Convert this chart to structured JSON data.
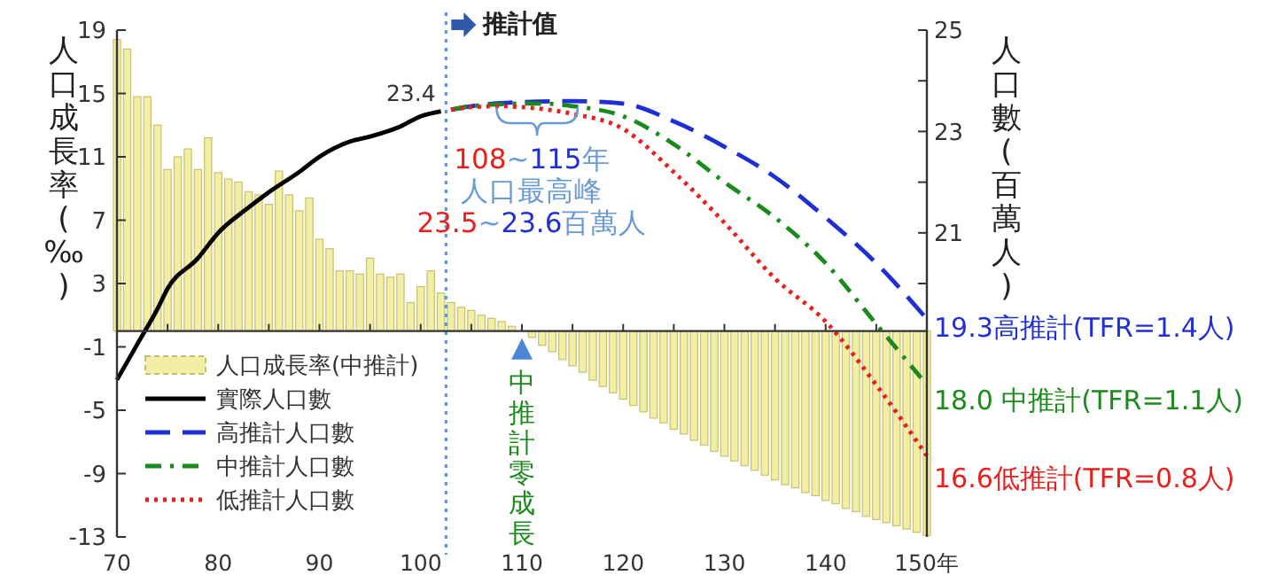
{
  "chart_data": {
    "type": "bar",
    "ylabel": "人口成長率(‰)",
    "y2label": "人口數(百萬人)",
    "xlim": [
      70,
      150
    ],
    "xticks": [
      70,
      80,
      90,
      100,
      110,
      120,
      130,
      140,
      {
        "value": 150,
        "label": "150年"
      }
    ],
    "ylim": [
      -13,
      19
    ],
    "yticks": [
      19,
      15,
      11,
      7,
      3,
      -1,
      -5,
      -9,
      -13
    ],
    "y2lim": [
      15,
      25
    ],
    "y2ticks": [
      25,
      {
        "value": 24,
        "label": null
      },
      23,
      {
        "value": 22,
        "label": null
      },
      21,
      {
        "value": 20,
        "label": null
      }
    ],
    "grid": false,
    "legend": "bottom left",
    "series": [
      {
        "name": "人口成長率(中推計)",
        "color": "#f3eea6",
        "x": [
          70,
          71,
          72,
          73,
          74,
          75,
          76,
          77,
          78,
          79,
          80,
          81,
          82,
          83,
          84,
          85,
          86,
          87,
          88,
          89,
          90,
          91,
          92,
          93,
          94,
          95,
          96,
          97,
          98,
          99,
          100,
          101,
          102,
          103,
          104,
          105,
          106,
          107,
          108,
          109,
          110,
          111,
          112,
          113,
          114,
          115,
          116,
          117,
          118,
          119,
          120,
          121,
          122,
          123,
          124,
          125,
          126,
          127,
          128,
          129,
          130,
          131,
          132,
          133,
          134,
          135,
          136,
          137,
          138,
          139,
          140,
          141,
          142,
          143,
          144,
          145,
          146,
          147,
          148,
          149,
          150
        ],
        "values": [
          18.4,
          17.8,
          14.8,
          14.8,
          13.0,
          10.2,
          11.0,
          11.5,
          10.2,
          12.2,
          10.0,
          9.6,
          9.4,
          8.8,
          8.6,
          8.0,
          10.1,
          8.6,
          7.6,
          8.4,
          5.8,
          5.2,
          3.8,
          3.8,
          3.6,
          4.6,
          3.6,
          3.4,
          3.6,
          1.8,
          2.8,
          3.8,
          2.4,
          1.8,
          1.5,
          1.3,
          1.0,
          0.8,
          0.6,
          0.3,
          0.0,
          -0.4,
          -0.9,
          -1.3,
          -1.8,
          -2.2,
          -2.6,
          -3.1,
          -3.5,
          -3.9,
          -4.3,
          -4.7,
          -5.1,
          -5.5,
          -5.8,
          -6.2,
          -6.5,
          -6.9,
          -7.2,
          -7.6,
          -7.9,
          -8.2,
          -8.5,
          -8.8,
          -9.1,
          -9.4,
          -9.7,
          -9.9,
          -10.2,
          -10.4,
          -10.7,
          -10.9,
          -11.2,
          -11.4,
          -11.7,
          -11.9,
          -12.1,
          -12.3,
          -12.5,
          -12.7,
          -12.9
        ]
      },
      {
        "type": "line",
        "name": "實際人口數",
        "color": "#000000",
        "axis": "y2",
        "line_style": "solid",
        "x": [
          70,
          72,
          74,
          75,
          78,
          80,
          83,
          85,
          88,
          90,
          93,
          95,
          98,
          100,
          102
        ],
        "values": [
          18.1,
          18.8,
          19.5,
          19.9,
          20.5,
          21.0,
          21.5,
          21.8,
          22.2,
          22.5,
          22.8,
          22.9,
          23.1,
          23.3,
          23.4
        ]
      },
      {
        "type": "line",
        "name": "高推計人口數",
        "color": "#1f2fd6",
        "axis": "y2",
        "line_style": "dashed",
        "x": [
          103,
          105,
          110,
          115,
          120,
          125,
          130,
          135,
          140,
          145,
          150
        ],
        "values": [
          23.43,
          23.5,
          23.58,
          23.6,
          23.55,
          23.2,
          22.7,
          22.1,
          21.3,
          20.4,
          19.3
        ]
      },
      {
        "type": "line",
        "name": "中推計人口數",
        "color": "#1a8a1a",
        "axis": "y2",
        "line_style": "dashdot",
        "x": [
          103,
          105,
          110,
          112,
          115,
          120,
          125,
          130,
          135,
          140,
          145,
          150
        ],
        "values": [
          23.43,
          23.5,
          23.55,
          23.55,
          23.5,
          23.3,
          22.75,
          22.0,
          21.3,
          20.4,
          19.2,
          18.0
        ]
      },
      {
        "type": "line",
        "name": "低推計人口數",
        "color": "#e8201c",
        "axis": "y2",
        "line_style": "dotted",
        "x": [
          103,
          105,
          108,
          110,
          115,
          120,
          125,
          130,
          135,
          140,
          145,
          150
        ],
        "values": [
          23.43,
          23.48,
          23.5,
          23.48,
          23.35,
          23.05,
          22.2,
          21.2,
          20.1,
          19.25,
          18.0,
          16.6
        ]
      }
    ],
    "ref_lines": [
      {
        "axis": "x",
        "value": 102.5,
        "label": "推計值",
        "color": "#5b8fd6",
        "line_style": "dotted"
      }
    ],
    "annotations": [
      "108~115年",
      "人口最高峰",
      "23.5~23.6百萬人",
      "23.4",
      "中推計零成長",
      "19.3高推計(TFR=1.4人)",
      "18.0 中推計(TFR=1.1人)",
      "16.6低推計(TFR=0.8人)"
    ]
  }
}
